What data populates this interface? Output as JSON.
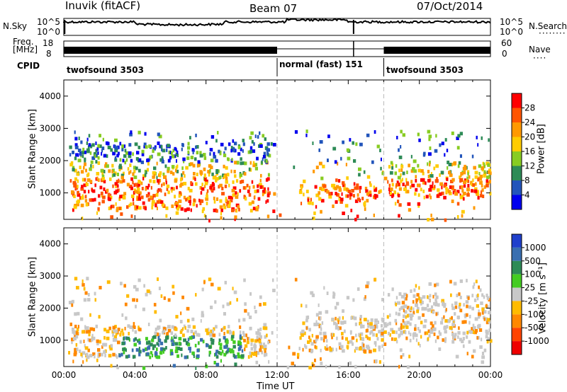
{
  "header": {
    "station": "Inuvik (fitACF)",
    "beam": "Beam 07",
    "date": "07/Oct/2014"
  },
  "strip": {
    "nsky_label": "N.Sky",
    "nsky_ticks": [
      "10^5",
      "10^0"
    ],
    "nsearch_label": "N.Search",
    "nsearch_ticks": [
      "10^5",
      "10^0"
    ],
    "freq_label_1": "Freq.",
    "freq_label_2": "[MHz]",
    "freq_ticks": [
      "18",
      "8"
    ],
    "nave_label": "Nave",
    "nave_ticks": [
      "60",
      "0"
    ],
    "cpid_label": "CPID",
    "cpid_segments": [
      {
        "label": "twofsound 3503",
        "start_hr": 0,
        "end_hr": 12
      },
      {
        "label": "normal (fast) 151",
        "start_hr": 12,
        "end_hr": 18
      },
      {
        "label": "twofsound 3503",
        "start_hr": 18,
        "end_hr": 24
      }
    ]
  },
  "chart_data": [
    {
      "type": "heatmap",
      "name": "power",
      "ylabel": "Slant Range [km]",
      "xlabel": "",
      "ylim": [
        180,
        4500
      ],
      "y_ticks": [
        "1000",
        "2000",
        "3000",
        "4000"
      ],
      "colorbar_label": "Power [dB]",
      "colorbar_ticks": [
        "28",
        "24",
        "20",
        "16",
        "12",
        "8",
        "4"
      ],
      "colorbar_colors": [
        "#ff0000",
        "#ff5500",
        "#ff9900",
        "#ffcc00",
        "#88cc22",
        "#2e8b57",
        "#2255bb",
        "#0000ee"
      ],
      "features": [
        {
          "x0": 0.3,
          "x1": 11.5,
          "y0": 500,
          "y1": 1500,
          "level": "high"
        },
        {
          "x0": 0.3,
          "x1": 11.5,
          "y0": 1400,
          "y1": 2600,
          "level": "mid"
        },
        {
          "x0": 13,
          "x1": 17.8,
          "y0": 700,
          "y1": 1300,
          "level": "high"
        },
        {
          "x0": 18.2,
          "x1": 24,
          "y0": 900,
          "y1": 2000,
          "level": "high"
        }
      ]
    },
    {
      "type": "heatmap",
      "name": "velocity",
      "ylabel": "Slant Range [km]",
      "xlabel": "Time UT",
      "ylim": [
        180,
        4500
      ],
      "y_ticks": [
        "1000",
        "2000",
        "3000",
        "4000"
      ],
      "x_ticks": [
        "00:00",
        "04:00",
        "08:00",
        "12:00",
        "16:00",
        "20:00",
        "00:00"
      ],
      "colorbar_label": "Velocity [m s⁻¹]",
      "colorbar_ticks": [
        "1000",
        "500",
        "100",
        "25",
        "-25",
        "-100",
        "-500",
        "-1000"
      ],
      "colorbar_colors": [
        "#2040cc",
        "#3a6fb0",
        "#2e8b57",
        "#44cc22",
        "#c8c8c8",
        "#ffbb00",
        "#ff8800",
        "#ff4400",
        "#ee0000"
      ],
      "features": [
        {
          "x0": 0.3,
          "x1": 11.5,
          "y0": 500,
          "y1": 1500,
          "level": "negative"
        },
        {
          "x0": 3,
          "x1": 10,
          "y0": 700,
          "y1": 1100,
          "level": "positive"
        },
        {
          "x0": 13,
          "x1": 18,
          "y0": 700,
          "y1": 1800,
          "level": "negative"
        },
        {
          "x0": 18.2,
          "x1": 24,
          "y0": 1000,
          "y1": 2500,
          "level": "neutral"
        }
      ]
    }
  ]
}
